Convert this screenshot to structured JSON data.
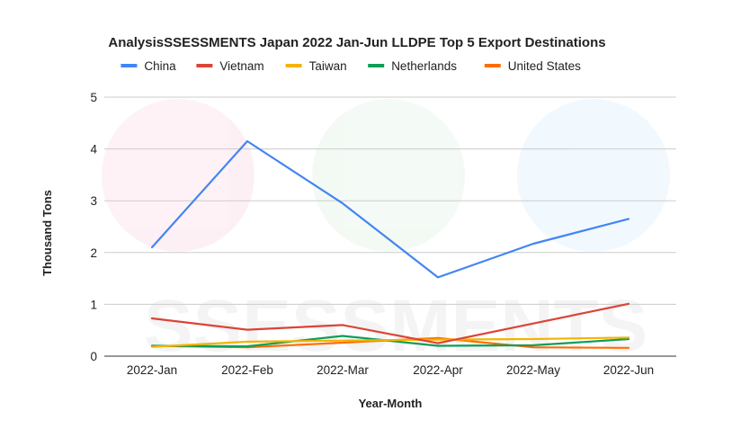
{
  "chart_data": {
    "type": "line",
    "title": "AnalysisSSESSMENTS Japan 2022 Jan-Jun LLDPE Top 5 Export Destinations",
    "xlabel": "Year-Month",
    "ylabel": "Thousand Tons",
    "categories": [
      "2022-Jan",
      "2022-Feb",
      "2022-Mar",
      "2022-Apr",
      "2022-May",
      "2022-Jun"
    ],
    "ylim": [
      0,
      5
    ],
    "yticks": [
      0,
      1,
      2,
      3,
      4,
      5
    ],
    "grid": true,
    "legend_position": "top",
    "series": [
      {
        "name": "China",
        "color": "#4285f4",
        "values": [
          2.1,
          4.15,
          2.95,
          1.52,
          2.17,
          2.65
        ]
      },
      {
        "name": "Vietnam",
        "color": "#db4437",
        "values": [
          0.73,
          0.51,
          0.6,
          0.25,
          0.63,
          1.01
        ]
      },
      {
        "name": "Taiwan",
        "color": "#f4b400",
        "values": [
          0.18,
          0.28,
          0.3,
          0.32,
          0.33,
          0.36
        ]
      },
      {
        "name": "Netherlands",
        "color": "#0f9d58",
        "values": [
          0.2,
          0.19,
          0.39,
          0.2,
          0.21,
          0.33
        ]
      },
      {
        "name": "United States",
        "color": "#ff6d01",
        "values": [
          0.2,
          0.17,
          0.26,
          0.35,
          0.17,
          0.16
        ]
      }
    ]
  },
  "watermark": {
    "text": "SSESSMENTS"
  }
}
